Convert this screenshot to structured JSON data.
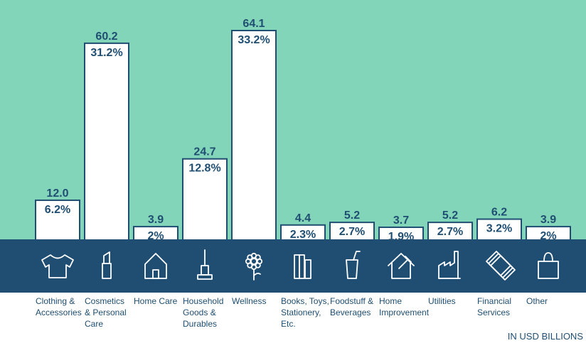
{
  "chart_data": {
    "type": "bar",
    "categories": [
      [
        "Clothing &",
        "Accessories"
      ],
      [
        "Cosmetics",
        "& Personal",
        "Care"
      ],
      [
        "Home Care"
      ],
      [
        "Household",
        "Goods &",
        "Durables"
      ],
      [
        "Wellness"
      ],
      [
        "Books, Toys,",
        "Stationery,",
        "Etc."
      ],
      [
        "Foodstuff &",
        "Beverages"
      ],
      [
        "Home",
        "Improvement"
      ],
      [
        "Utilities"
      ],
      [
        "Financial",
        "Services"
      ],
      [
        "Other"
      ]
    ],
    "values": [
      12.0,
      60.2,
      3.9,
      24.7,
      64.1,
      4.4,
      5.2,
      3.7,
      5.2,
      6.2,
      3.9
    ],
    "value_labels": [
      "12.0",
      "60.2",
      "3.9",
      "24.7",
      "64.1",
      "4.4",
      "5.2",
      "3.7",
      "5.2",
      "6.2",
      "3.9"
    ],
    "percent_labels": [
      "6.2%",
      "31.2%",
      "2%",
      "12.8%",
      "33.2%",
      "2.3%",
      "2.7%",
      "1.9%",
      "2.7%",
      "3.2%",
      "2%"
    ],
    "icons": [
      "tshirt-icon",
      "lipstick-icon",
      "house-icon",
      "vacuum-icon",
      "flower-icon",
      "books-icon",
      "drink-cup-icon",
      "house-hammer-icon",
      "factory-icon",
      "banknotes-icon",
      "shopping-bag-icon"
    ],
    "unit_note": "IN USD BILLIONS",
    "colors": {
      "background_top": "#83d5b9",
      "band": "#1f4e72",
      "bar_fill": "#ffffff",
      "text": "#1f4e72"
    }
  }
}
